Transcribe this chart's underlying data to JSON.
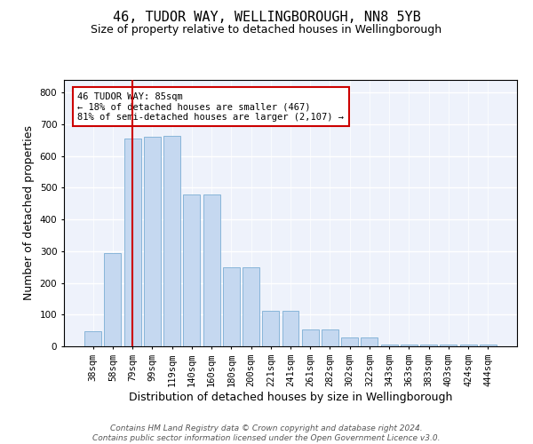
{
  "title1": "46, TUDOR WAY, WELLINGBOROUGH, NN8 5YB",
  "title2": "Size of property relative to detached houses in Wellingborough",
  "xlabel": "Distribution of detached houses by size in Wellingborough",
  "ylabel": "Number of detached properties",
  "categories": [
    "38sqm",
    "58sqm",
    "79sqm",
    "99sqm",
    "119sqm",
    "140sqm",
    "160sqm",
    "180sqm",
    "200sqm",
    "221sqm",
    "241sqm",
    "261sqm",
    "282sqm",
    "302sqm",
    "322sqm",
    "343sqm",
    "363sqm",
    "383sqm",
    "403sqm",
    "424sqm",
    "444sqm"
  ],
  "bar_heights": [
    48,
    295,
    655,
    660,
    665,
    480,
    480,
    250,
    250,
    113,
    113,
    52,
    52,
    27,
    27,
    7,
    5,
    5,
    5,
    5,
    5
  ],
  "bar_color": "#c5d8f0",
  "bar_edge_color": "#7baed4",
  "vline_x": 2,
  "vline_color": "#cc0000",
  "annotation_text": "46 TUDOR WAY: 85sqm\n← 18% of detached houses are smaller (467)\n81% of semi-detached houses are larger (2,107) →",
  "annotation_box_color": "#ffffff",
  "annotation_box_edge": "#cc0000",
  "ylim": [
    0,
    840
  ],
  "yticks": [
    0,
    100,
    200,
    300,
    400,
    500,
    600,
    700,
    800
  ],
  "background_color": "#eef2fb",
  "grid_color": "#ffffff",
  "footer": "Contains HM Land Registry data © Crown copyright and database right 2024.\nContains public sector information licensed under the Open Government Licence v3.0.",
  "title1_fontsize": 11,
  "title2_fontsize": 9,
  "xlabel_fontsize": 9,
  "ylabel_fontsize": 9,
  "tick_fontsize": 7.5,
  "footer_fontsize": 6.5
}
